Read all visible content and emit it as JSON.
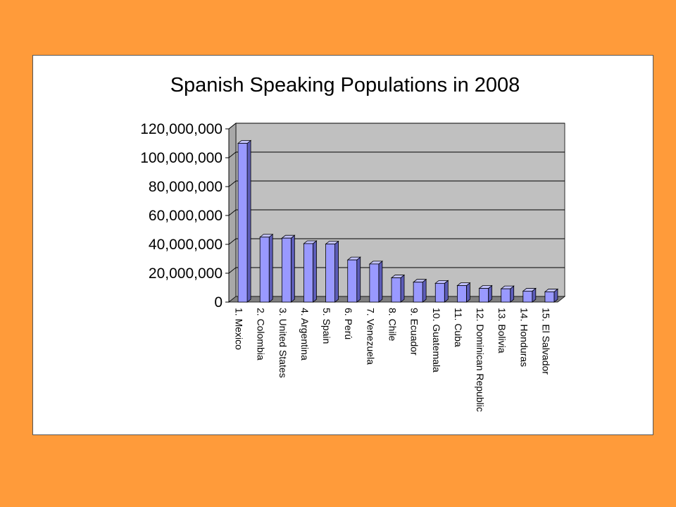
{
  "chart_data": {
    "type": "bar",
    "title": "Spanish Speaking Populations in 2008",
    "xlabel": "",
    "ylabel": "",
    "categories": [
      "1. Mexico",
      "2. Colombia",
      "3. United States",
      "4. Argentina",
      "5. Spain",
      "6. Perú",
      "7. Venezuela",
      "8. Chile",
      "9. Ecuador",
      "10. Guatemala",
      "11. Cuba",
      "12. Dominican Republic",
      "13. Bolivia",
      "14. Honduras",
      "15. El Salvador"
    ],
    "values": [
      110000000,
      45000000,
      44300000,
      40500000,
      40200000,
      29200000,
      26400000,
      16800000,
      13800000,
      13000000,
      11400000,
      9500000,
      9200000,
      7600000,
      7100000
    ],
    "ylim": [
      0,
      120000000
    ],
    "yticks": [
      0,
      20000000,
      40000000,
      60000000,
      80000000,
      100000000,
      120000000
    ],
    "ytick_labels": [
      "0",
      "20,000,000",
      "40,000,000",
      "60,000,000",
      "80,000,000",
      "100,000,000",
      "120,000,000"
    ],
    "grid": true,
    "legend": "none",
    "colors": {
      "page_background": "#FF9B3A",
      "chart_background": "#FFFFFF",
      "plot_wall": "#C0C0C0",
      "floor": "#808080",
      "bar_front": "#9999FF",
      "bar_top": "#C2C2FF",
      "bar_side": "#5C5CB8",
      "bar_outline": "#000000",
      "gridline": "#000000"
    }
  }
}
